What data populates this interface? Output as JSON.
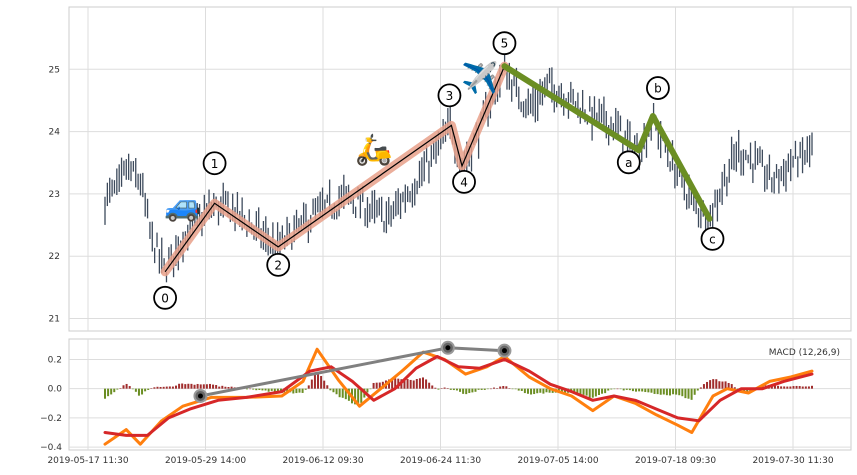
{
  "chart_data": [
    {
      "type": "candlestick",
      "title": "",
      "xlabel": "",
      "ylabel": "",
      "ylim": [
        20.8,
        26.0
      ],
      "yticks": [
        21,
        22,
        23,
        24,
        25
      ],
      "x_tick_labels": [
        "2019-05-17 11:30",
        "2019-05-29 14:00",
        "2019-06-12 09:30",
        "2019-06-24 11:30",
        "2019-07-05 14:00",
        "2019-07-18 09:30",
        "2019-07-30 11:30"
      ],
      "grid": true,
      "price_path": [
        [
          0,
          22.9
        ],
        [
          0.02,
          23.1
        ],
        [
          0.03,
          23.4
        ],
        [
          0.05,
          23.2
        ],
        [
          0.065,
          22.3
        ],
        [
          0.085,
          21.75
        ],
        [
          0.11,
          22.3
        ],
        [
          0.135,
          22.6
        ],
        [
          0.155,
          22.8
        ],
        [
          0.18,
          22.75
        ],
        [
          0.2,
          22.55
        ],
        [
          0.225,
          22.3
        ],
        [
          0.245,
          22.15
        ],
        [
          0.26,
          22.3
        ],
        [
          0.28,
          22.5
        ],
        [
          0.3,
          22.7
        ],
        [
          0.32,
          22.8
        ],
        [
          0.34,
          22.95
        ],
        [
          0.36,
          22.85
        ],
        [
          0.38,
          22.7
        ],
        [
          0.4,
          22.6
        ],
        [
          0.42,
          22.9
        ],
        [
          0.44,
          23.2
        ],
        [
          0.465,
          23.6
        ],
        [
          0.49,
          24.1
        ],
        [
          0.505,
          23.4
        ],
        [
          0.525,
          23.9
        ],
        [
          0.55,
          24.6
        ],
        [
          0.565,
          25.0
        ],
        [
          0.585,
          24.6
        ],
        [
          0.6,
          24.4
        ],
        [
          0.63,
          24.75
        ],
        [
          0.66,
          24.5
        ],
        [
          0.69,
          24.25
        ],
        [
          0.72,
          24.1
        ],
        [
          0.745,
          23.75
        ],
        [
          0.755,
          23.7
        ],
        [
          0.775,
          24.2
        ],
        [
          0.79,
          23.8
        ],
        [
          0.81,
          23.3
        ],
        [
          0.835,
          22.8
        ],
        [
          0.855,
          22.6
        ],
        [
          0.875,
          23.2
        ],
        [
          0.895,
          23.7
        ],
        [
          0.92,
          23.5
        ],
        [
          0.945,
          23.2
        ],
        [
          0.97,
          23.5
        ],
        [
          0.99,
          23.6
        ],
        [
          1.0,
          23.75
        ]
      ],
      "waves": {
        "impulse": [
          {
            "label": "0",
            "x": 0.085,
            "y": 21.75
          },
          {
            "label": "1",
            "x": 0.155,
            "y": 22.85
          },
          {
            "label": "2",
            "x": 0.245,
            "y": 22.15
          },
          {
            "label": "3",
            "x": 0.49,
            "y": 24.1
          },
          {
            "label": "4",
            "x": 0.505,
            "y": 23.45
          },
          {
            "label": "5",
            "x": 0.565,
            "y": 25.05
          }
        ],
        "correction": [
          {
            "label": "a",
            "x": 0.755,
            "y": 23.7
          },
          {
            "label": "b",
            "x": 0.775,
            "y": 24.25
          },
          {
            "label": "c",
            "x": 0.855,
            "y": 22.6
          }
        ]
      },
      "emojis": [
        {
          "name": "car-emoji",
          "char": "🚙",
          "x": 0.11,
          "y": 22.65
        },
        {
          "name": "scooter-emoji",
          "char": "🛵",
          "x": 0.38,
          "y": 23.55
        },
        {
          "name": "airplane-emoji",
          "char": "✈️",
          "x": 0.53,
          "y": 24.7
        }
      ],
      "colors": {
        "candles": "#3d4a5c",
        "impulse_wave": "#e8a08a",
        "impulse_line": "#000000",
        "correction_wave": "#6b8e23"
      }
    },
    {
      "type": "line",
      "title": "",
      "legend": "MACD (12,26,9)",
      "ylim": [
        -0.42,
        0.34
      ],
      "yticks": [
        -0.4,
        -0.2,
        0.0,
        0.2
      ],
      "grid": true,
      "series": [
        {
          "name": "",
          "color": "#ff7f0e",
          "values": [
            [
              0,
              -0.38
            ],
            [
              0.03,
              -0.28
            ],
            [
              0.05,
              -0.38
            ],
            [
              0.08,
              -0.22
            ],
            [
              0.11,
              -0.12
            ],
            [
              0.15,
              -0.06
            ],
            [
              0.2,
              -0.06
            ],
            [
              0.25,
              -0.05
            ],
            [
              0.28,
              0.05
            ],
            [
              0.3,
              0.27
            ],
            [
              0.33,
              0.06
            ],
            [
              0.36,
              -0.12
            ],
            [
              0.39,
              0.0
            ],
            [
              0.42,
              0.12
            ],
            [
              0.45,
              0.25
            ],
            [
              0.48,
              0.2
            ],
            [
              0.51,
              0.1
            ],
            [
              0.54,
              0.15
            ],
            [
              0.565,
              0.22
            ],
            [
              0.6,
              0.08
            ],
            [
              0.63,
              0.0
            ],
            [
              0.66,
              -0.05
            ],
            [
              0.69,
              -0.15
            ],
            [
              0.72,
              -0.05
            ],
            [
              0.75,
              -0.1
            ],
            [
              0.78,
              -0.18
            ],
            [
              0.81,
              -0.25
            ],
            [
              0.83,
              -0.3
            ],
            [
              0.86,
              -0.05
            ],
            [
              0.88,
              0.0
            ],
            [
              0.91,
              -0.03
            ],
            [
              0.94,
              0.05
            ],
            [
              0.97,
              0.08
            ],
            [
              1.0,
              0.12
            ]
          ]
        },
        {
          "name": "",
          "color": "#d62728",
          "values": [
            [
              0,
              -0.3
            ],
            [
              0.03,
              -0.32
            ],
            [
              0.06,
              -0.32
            ],
            [
              0.09,
              -0.2
            ],
            [
              0.12,
              -0.14
            ],
            [
              0.16,
              -0.08
            ],
            [
              0.2,
              -0.06
            ],
            [
              0.25,
              -0.02
            ],
            [
              0.29,
              0.12
            ],
            [
              0.32,
              0.15
            ],
            [
              0.35,
              0.05
            ],
            [
              0.38,
              -0.08
            ],
            [
              0.41,
              0.0
            ],
            [
              0.44,
              0.14
            ],
            [
              0.47,
              0.22
            ],
            [
              0.5,
              0.15
            ],
            [
              0.53,
              0.14
            ],
            [
              0.565,
              0.2
            ],
            [
              0.6,
              0.12
            ],
            [
              0.63,
              0.03
            ],
            [
              0.66,
              -0.02
            ],
            [
              0.69,
              -0.08
            ],
            [
              0.72,
              -0.05
            ],
            [
              0.75,
              -0.08
            ],
            [
              0.78,
              -0.14
            ],
            [
              0.81,
              -0.2
            ],
            [
              0.84,
              -0.22
            ],
            [
              0.87,
              -0.08
            ],
            [
              0.9,
              0.0
            ],
            [
              0.93,
              0.0
            ],
            [
              0.96,
              0.05
            ],
            [
              1.0,
              0.1
            ]
          ]
        },
        {
          "name": "",
          "color": "#808080",
          "values": [
            [
              0.135,
              -0.05
            ],
            [
              0.485,
              0.28
            ],
            [
              0.565,
              0.26
            ]
          ]
        }
      ],
      "histogram_color_positive": "#a02c2c",
      "histogram_color_negative": "#6b8e23"
    }
  ]
}
